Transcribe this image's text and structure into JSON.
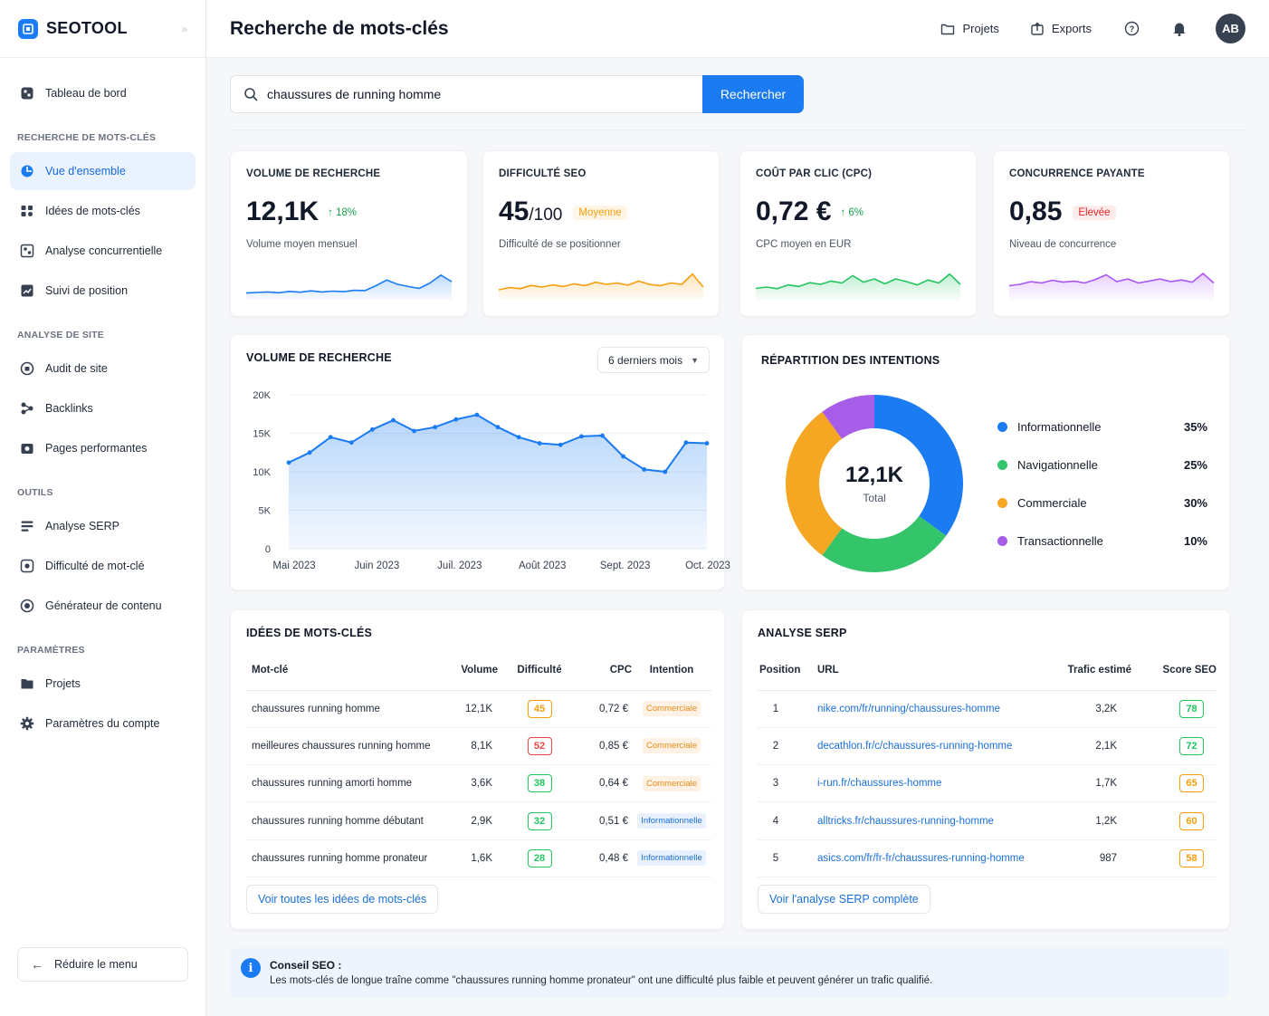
{
  "app": {
    "name": "SEOTOOL"
  },
  "sidebar": {
    "top_item": {
      "label": "Tableau de bord"
    },
    "sections": [
      {
        "title": "RECHERCHE DE MOTS-CLÉS",
        "items": [
          {
            "label": "Vue d'ensemble",
            "icon": "chart-pie-icon",
            "active": true
          },
          {
            "label": "Idées de mots-clés",
            "icon": "lightbulb-icon"
          },
          {
            "label": "Analyse concurrentielle",
            "icon": "users-icon"
          },
          {
            "label": "Suivi de position",
            "icon": "trending-icon"
          }
        ]
      },
      {
        "title": "ANALYSE DE SITE",
        "items": [
          {
            "label": "Audit de site",
            "icon": "audit-icon"
          },
          {
            "label": "Backlinks",
            "icon": "link-icon"
          },
          {
            "label": "Pages performantes",
            "icon": "pages-icon"
          }
        ]
      },
      {
        "title": "OUTILS",
        "items": [
          {
            "label": "Analyse SERP",
            "icon": "list-icon"
          },
          {
            "label": "Difficulté de mot-clé",
            "icon": "target-icon"
          },
          {
            "label": "Générateur de contenu",
            "icon": "content-icon"
          }
        ]
      },
      {
        "title": "PARAMÈTRES",
        "items": [
          {
            "label": "Projets",
            "icon": "folder-icon"
          },
          {
            "label": "Paramètres du compte",
            "icon": "gear-icon"
          }
        ]
      }
    ],
    "reduce_label": "Réduire le menu"
  },
  "header": {
    "title": "Recherche de mots-clés",
    "projects_label": "Projets",
    "exports_label": "Exports",
    "avatar_initials": "AB"
  },
  "search": {
    "value": "chaussures de running homme",
    "button_label": "Rechercher"
  },
  "metrics": [
    {
      "label": "VOLUME DE RECHERCHE",
      "value": "12,1K",
      "suffix": "",
      "trend": "↑ 18%",
      "badge": "",
      "sub": "Volume moyen mensuel",
      "color": "#1a7bf2",
      "spark": [
        0.18,
        0.2,
        0.22,
        0.19,
        0.24,
        0.21,
        0.26,
        0.22,
        0.25,
        0.23,
        0.28,
        0.27,
        0.45,
        0.66,
        0.5,
        0.42,
        0.35,
        0.55,
        0.84,
        0.6
      ]
    },
    {
      "label": "DIFFICULTÉ SEO",
      "value": "45",
      "suffix": "/100",
      "trend": "",
      "badge": "Moyenne",
      "badge_color": "#f59e0b",
      "badge_bg": "#fff5e6",
      "sub": "Difficulté de se positionner",
      "color": "#f59e0b",
      "spark": [
        0.3,
        0.38,
        0.34,
        0.46,
        0.4,
        0.48,
        0.42,
        0.52,
        0.45,
        0.58,
        0.5,
        0.55,
        0.47,
        0.62,
        0.5,
        0.45,
        0.55,
        0.5,
        0.88,
        0.4
      ]
    },
    {
      "label": "COÛT PAR CLIC (CPC)",
      "value": "0,72 €",
      "suffix": "",
      "trend": "↑ 6%",
      "badge": "",
      "sub": "CPC moyen en EUR",
      "color": "#22c55e",
      "spark": [
        0.35,
        0.4,
        0.34,
        0.48,
        0.42,
        0.56,
        0.5,
        0.62,
        0.55,
        0.82,
        0.58,
        0.7,
        0.52,
        0.7,
        0.6,
        0.48,
        0.66,
        0.55,
        0.88,
        0.5
      ]
    },
    {
      "label": "CONCURRENCE PAYANTE",
      "value": "0,85",
      "suffix": "",
      "trend": "",
      "badge": "Elevée",
      "badge_color": "#dc2626",
      "badge_bg": "#fdecec",
      "sub": "Niveau de concurrence",
      "color": "#a855f7",
      "spark": [
        0.45,
        0.5,
        0.6,
        0.55,
        0.65,
        0.58,
        0.62,
        0.55,
        0.68,
        0.85,
        0.6,
        0.7,
        0.55,
        0.62,
        0.7,
        0.6,
        0.66,
        0.58,
        0.9,
        0.55
      ]
    }
  ],
  "volume_chart": {
    "title": "VOLUME DE RECHERCHE",
    "period": "6 derniers mois"
  },
  "chart_data": {
    "type": "area",
    "title": "VOLUME DE RECHERCHE",
    "x_labels": [
      "Mai 2023",
      "Juin 2023",
      "Juil. 2023",
      "Août 2023",
      "Sept. 2023",
      "Oct. 2023"
    ],
    "y_ticks": [
      "0",
      "5K",
      "10K",
      "15K",
      "20K"
    ],
    "ylim": [
      0,
      20000
    ],
    "values": [
      11200,
      12500,
      14500,
      13800,
      15500,
      16700,
      15300,
      15800,
      16800,
      17400,
      15800,
      14500,
      13700,
      13500,
      14600,
      14700,
      12000,
      10300,
      10000,
      13800,
      13700
    ],
    "color": "#1a7bf2"
  },
  "intent": {
    "title": "RÉPARTITION DES INTENTIONS",
    "center_value": "12,1K",
    "center_label": "Total",
    "items": [
      {
        "name": "Informationnelle",
        "pct": "35%",
        "value": 35,
        "color": "#1a7bf2"
      },
      {
        "name": "Navigationnelle",
        "pct": "25%",
        "value": 25,
        "color": "#34c46a"
      },
      {
        "name": "Commerciale",
        "pct": "30%",
        "value": 30,
        "color": "#f5a623"
      },
      {
        "name": "Transactionnelle",
        "pct": "10%",
        "value": 10,
        "color": "#a65de8"
      }
    ]
  },
  "keywords": {
    "title": "IDÉES DE MOTS-CLÉS",
    "headers": [
      "Mot-clé",
      "Volume",
      "Difficulté",
      "CPC",
      "Intention"
    ],
    "rows": [
      {
        "kw": "chaussures running homme",
        "volume": "12,1K",
        "difficulty": "45",
        "diff_color": "#f59e0b",
        "cpc": "0,72 €",
        "intent": "Commerciale"
      },
      {
        "kw": "meilleures chaussures running homme",
        "volume": "8,1K",
        "difficulty": "52",
        "diff_color": "#ef4444",
        "cpc": "0,85 €",
        "intent": "Commerciale"
      },
      {
        "kw": "chaussures running amorti homme",
        "volume": "3,6K",
        "difficulty": "38",
        "diff_color": "#22c55e",
        "cpc": "0,64 €",
        "intent": "Commerciale"
      },
      {
        "kw": "chaussures running homme débutant",
        "volume": "2,9K",
        "difficulty": "32",
        "diff_color": "#22c55e",
        "cpc": "0,51 €",
        "intent": "Informationnelle"
      },
      {
        "kw": "chaussures running homme pronateur",
        "volume": "1,6K",
        "difficulty": "28",
        "diff_color": "#22c55e",
        "cpc": "0,48 €",
        "intent": "Informationnelle"
      }
    ],
    "link_label": "Voir toutes les idées de mots-clés"
  },
  "serp": {
    "title": "ANALYSE SERP",
    "headers": [
      "Position",
      "URL",
      "Trafic estimé",
      "Score SEO"
    ],
    "rows": [
      {
        "pos": "1",
        "url": "nike.com/fr/running/chaussures-homme",
        "traffic": "3,2K",
        "score": "78",
        "score_color": "#22c55e"
      },
      {
        "pos": "2",
        "url": "decathlon.fr/c/chaussures-running-homme",
        "traffic": "2,1K",
        "score": "72",
        "score_color": "#22c55e"
      },
      {
        "pos": "3",
        "url": "i-run.fr/chaussures-homme",
        "traffic": "1,7K",
        "score": "65",
        "score_color": "#f59e0b"
      },
      {
        "pos": "4",
        "url": "alltricks.fr/chaussures-running-homme",
        "traffic": "1,2K",
        "score": "60",
        "score_color": "#f59e0b"
      },
      {
        "pos": "5",
        "url": "asics.com/fr/fr-fr/chaussures-running-homme",
        "traffic": "987",
        "score": "58",
        "score_color": "#f59e0b"
      }
    ],
    "link_label": "Voir l'analyse SERP complète"
  },
  "tip": {
    "title": "Conseil SEO :",
    "text": "Les mots-clés de longue traîne comme \"chaussures running homme pronateur\" ont une difficulté plus faible et peuvent générer un trafic qualifié."
  }
}
